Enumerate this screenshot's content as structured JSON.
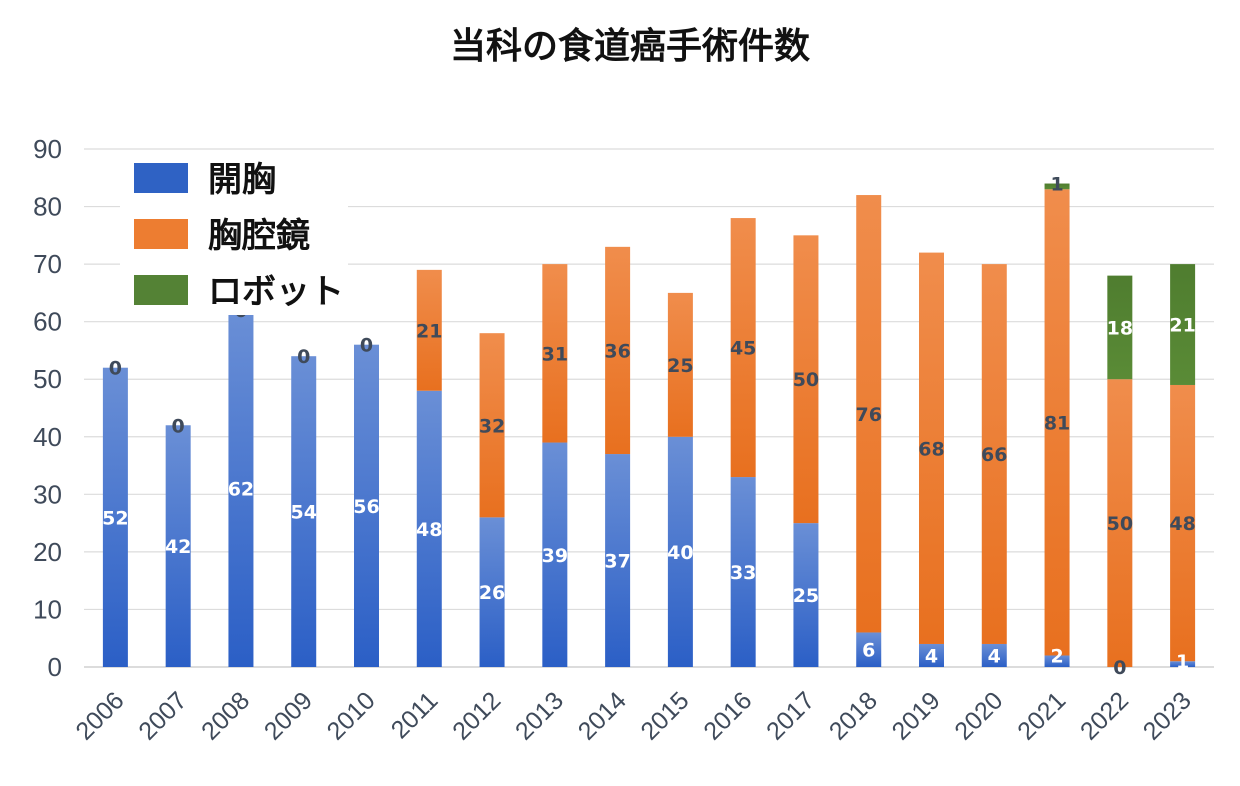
{
  "chart_data": {
    "type": "bar",
    "stacked": true,
    "title": "当科の食道癌手術件数",
    "xlabel": "",
    "ylabel": "",
    "ylim": [
      0,
      90
    ],
    "yticks": [
      "0",
      "10",
      "20",
      "30",
      "40",
      "50",
      "60",
      "70",
      "80",
      "90"
    ],
    "grid": true,
    "legend_position": "top-left",
    "categories": [
      "2006",
      "2007",
      "2008",
      "2009",
      "2010",
      "2011",
      "2012",
      "2013",
      "2014",
      "2015",
      "2016",
      "2017",
      "2018",
      "2019",
      "2020",
      "2021",
      "2022",
      "2023"
    ],
    "series": [
      {
        "name": "開胸",
        "color": "#2f62c4",
        "values": [
          52,
          42,
          62,
          54,
          56,
          48,
          26,
          39,
          37,
          40,
          33,
          25,
          6,
          4,
          4,
          2,
          0,
          1
        ]
      },
      {
        "name": "胸腔鏡",
        "color": "#ed7d31",
        "values": [
          0,
          0,
          0,
          0,
          0,
          21,
          32,
          31,
          36,
          25,
          45,
          50,
          76,
          68,
          66,
          81,
          50,
          48
        ]
      },
      {
        "name": "ロボット",
        "color": "#548235",
        "values": [
          null,
          null,
          null,
          null,
          null,
          null,
          null,
          null,
          null,
          null,
          null,
          null,
          null,
          null,
          null,
          1,
          18,
          21
        ]
      }
    ]
  }
}
